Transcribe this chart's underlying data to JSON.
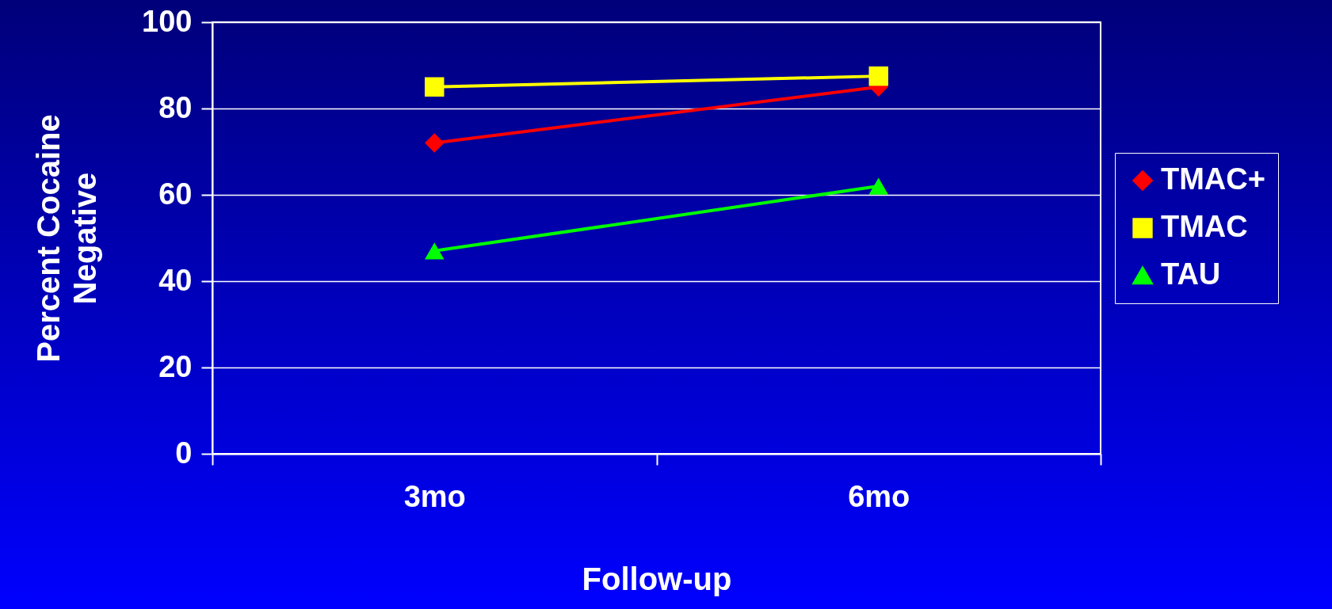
{
  "chart_data": {
    "type": "line",
    "xlabel": "Follow-up",
    "ylabel": "Percent Cocaine Negative",
    "categories": [
      "3mo",
      "6mo"
    ],
    "series": [
      {
        "name": "TMAC+",
        "color": "#ff0000",
        "values": [
          72,
          85
        ],
        "marker": "diamond"
      },
      {
        "name": "TMAC",
        "color": "#ffff00",
        "values": [
          85,
          87.5
        ],
        "marker": "square"
      },
      {
        "name": "TAU",
        "color": "#00ff00",
        "values": [
          47,
          62
        ],
        "marker": "triangle"
      }
    ],
    "ylim": [
      0,
      100
    ],
    "yticks": [
      0,
      20,
      40,
      60,
      80,
      100
    ],
    "grid": "y",
    "legend": "right"
  }
}
